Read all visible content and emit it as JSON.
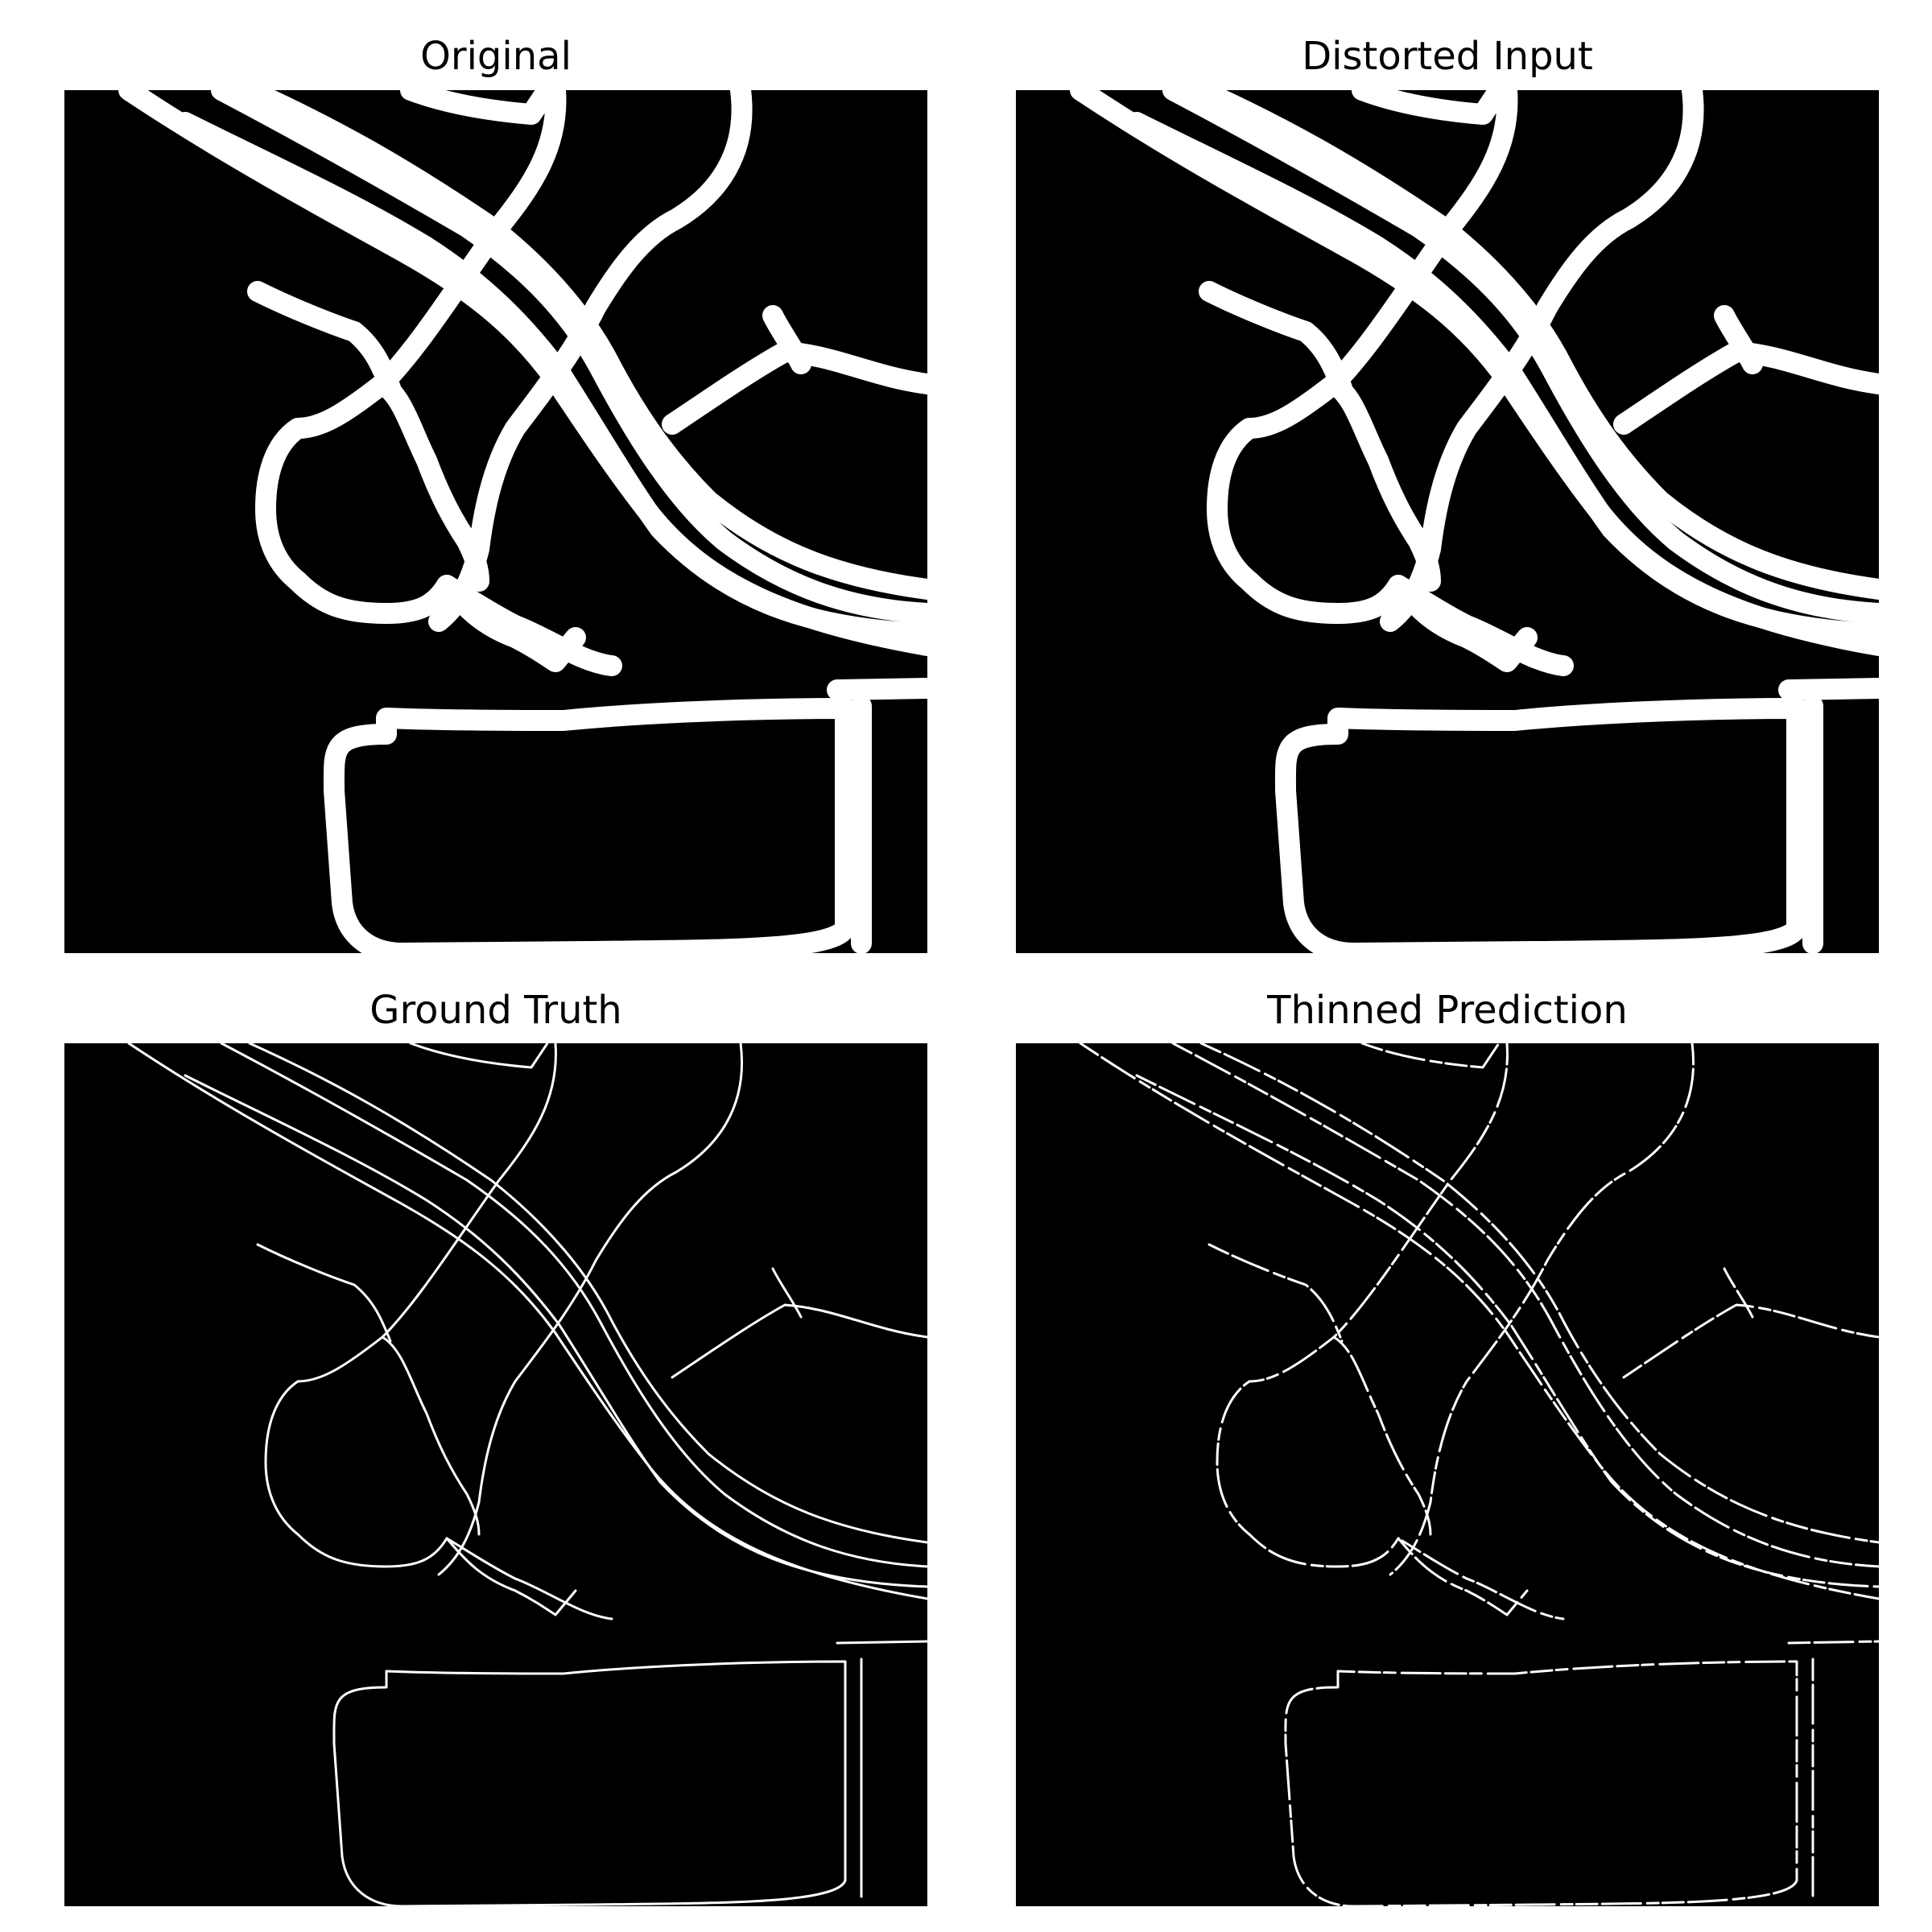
{
  "panels": [
    {
      "title": "Original",
      "style": "thick"
    },
    {
      "title": "Distorted Input",
      "style": "thick"
    },
    {
      "title": "Ground Truth",
      "style": "thin"
    },
    {
      "title": "Thinned Prediction",
      "style": "dashed"
    }
  ],
  "colors": {
    "background": "#000000",
    "stroke": "#ffffff",
    "page": "#ffffff"
  }
}
